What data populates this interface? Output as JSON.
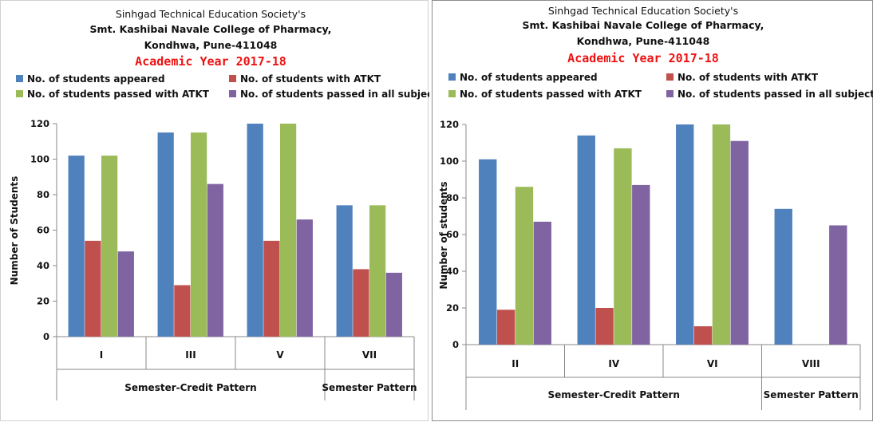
{
  "legend": [
    {
      "label": "No. of students appeared",
      "color": "#4F81BD"
    },
    {
      "label": "No. of students with ATKT",
      "color": "#C0504D"
    },
    {
      "label": "No. of students passed with ATKT",
      "color": "#9BBB59"
    },
    {
      "label": "No. of students passed in all subjects",
      "color": "#8064A2"
    }
  ],
  "chart_data": [
    {
      "type": "bar",
      "header": {
        "line1": "Sinhgad Technical Education Society's",
        "line2": "Smt. Kashibai Navale College of Pharmacy,",
        "line3": "Kondhwa, Pune-411048",
        "year": "Academic Year 2017-18"
      },
      "ylabel": "Number of Students",
      "ylim": [
        0,
        120
      ],
      "yticks": [
        "0",
        "20",
        "40",
        "60",
        "80",
        "100",
        "120"
      ],
      "categories": [
        "I",
        "III",
        "V",
        "VII"
      ],
      "groups": [
        {
          "label": "Semester-Credit Pattern",
          "span": [
            0,
            2
          ]
        },
        {
          "label": "Semester Pattern",
          "span": [
            3,
            3
          ]
        }
      ],
      "series": [
        {
          "name": "No. of students appeared",
          "values": [
            102,
            115,
            120,
            74
          ]
        },
        {
          "name": "No. of students with ATKT",
          "values": [
            54,
            29,
            54,
            38
          ]
        },
        {
          "name": "No. of students passed with ATKT",
          "values": [
            102,
            115,
            120,
            74
          ]
        },
        {
          "name": "No. of students passed in all subjects",
          "values": [
            48,
            86,
            66,
            36
          ]
        }
      ],
      "grid": false,
      "legend_position": "top"
    },
    {
      "type": "bar",
      "header": {
        "line1": "Sinhgad Technical Education Society's",
        "line2": "Smt. Kashibai Navale College of Pharmacy,",
        "line3": "Kondhwa, Pune-411048",
        "year": "Academic Year 2017-18"
      },
      "ylabel": "Number of students",
      "ylim": [
        0,
        120
      ],
      "yticks": [
        "0",
        "20",
        "40",
        "60",
        "80",
        "100",
        "120"
      ],
      "categories": [
        "II",
        "IV",
        "VI",
        "VIII"
      ],
      "groups": [
        {
          "label": "Semester-Credit Pattern",
          "span": [
            0,
            2
          ]
        },
        {
          "label": "Semester Pattern",
          "span": [
            3,
            3
          ]
        }
      ],
      "series": [
        {
          "name": "No. of students appeared",
          "values": [
            101,
            114,
            120,
            74
          ]
        },
        {
          "name": "No. of students with ATKT",
          "values": [
            19,
            20,
            10,
            0
          ]
        },
        {
          "name": "No. of students passed with ATKT",
          "values": [
            86,
            107,
            120,
            0
          ]
        },
        {
          "name": "No. of students passed in all subjects",
          "values": [
            67,
            87,
            111,
            65
          ]
        }
      ],
      "grid": false,
      "legend_position": "top"
    }
  ]
}
